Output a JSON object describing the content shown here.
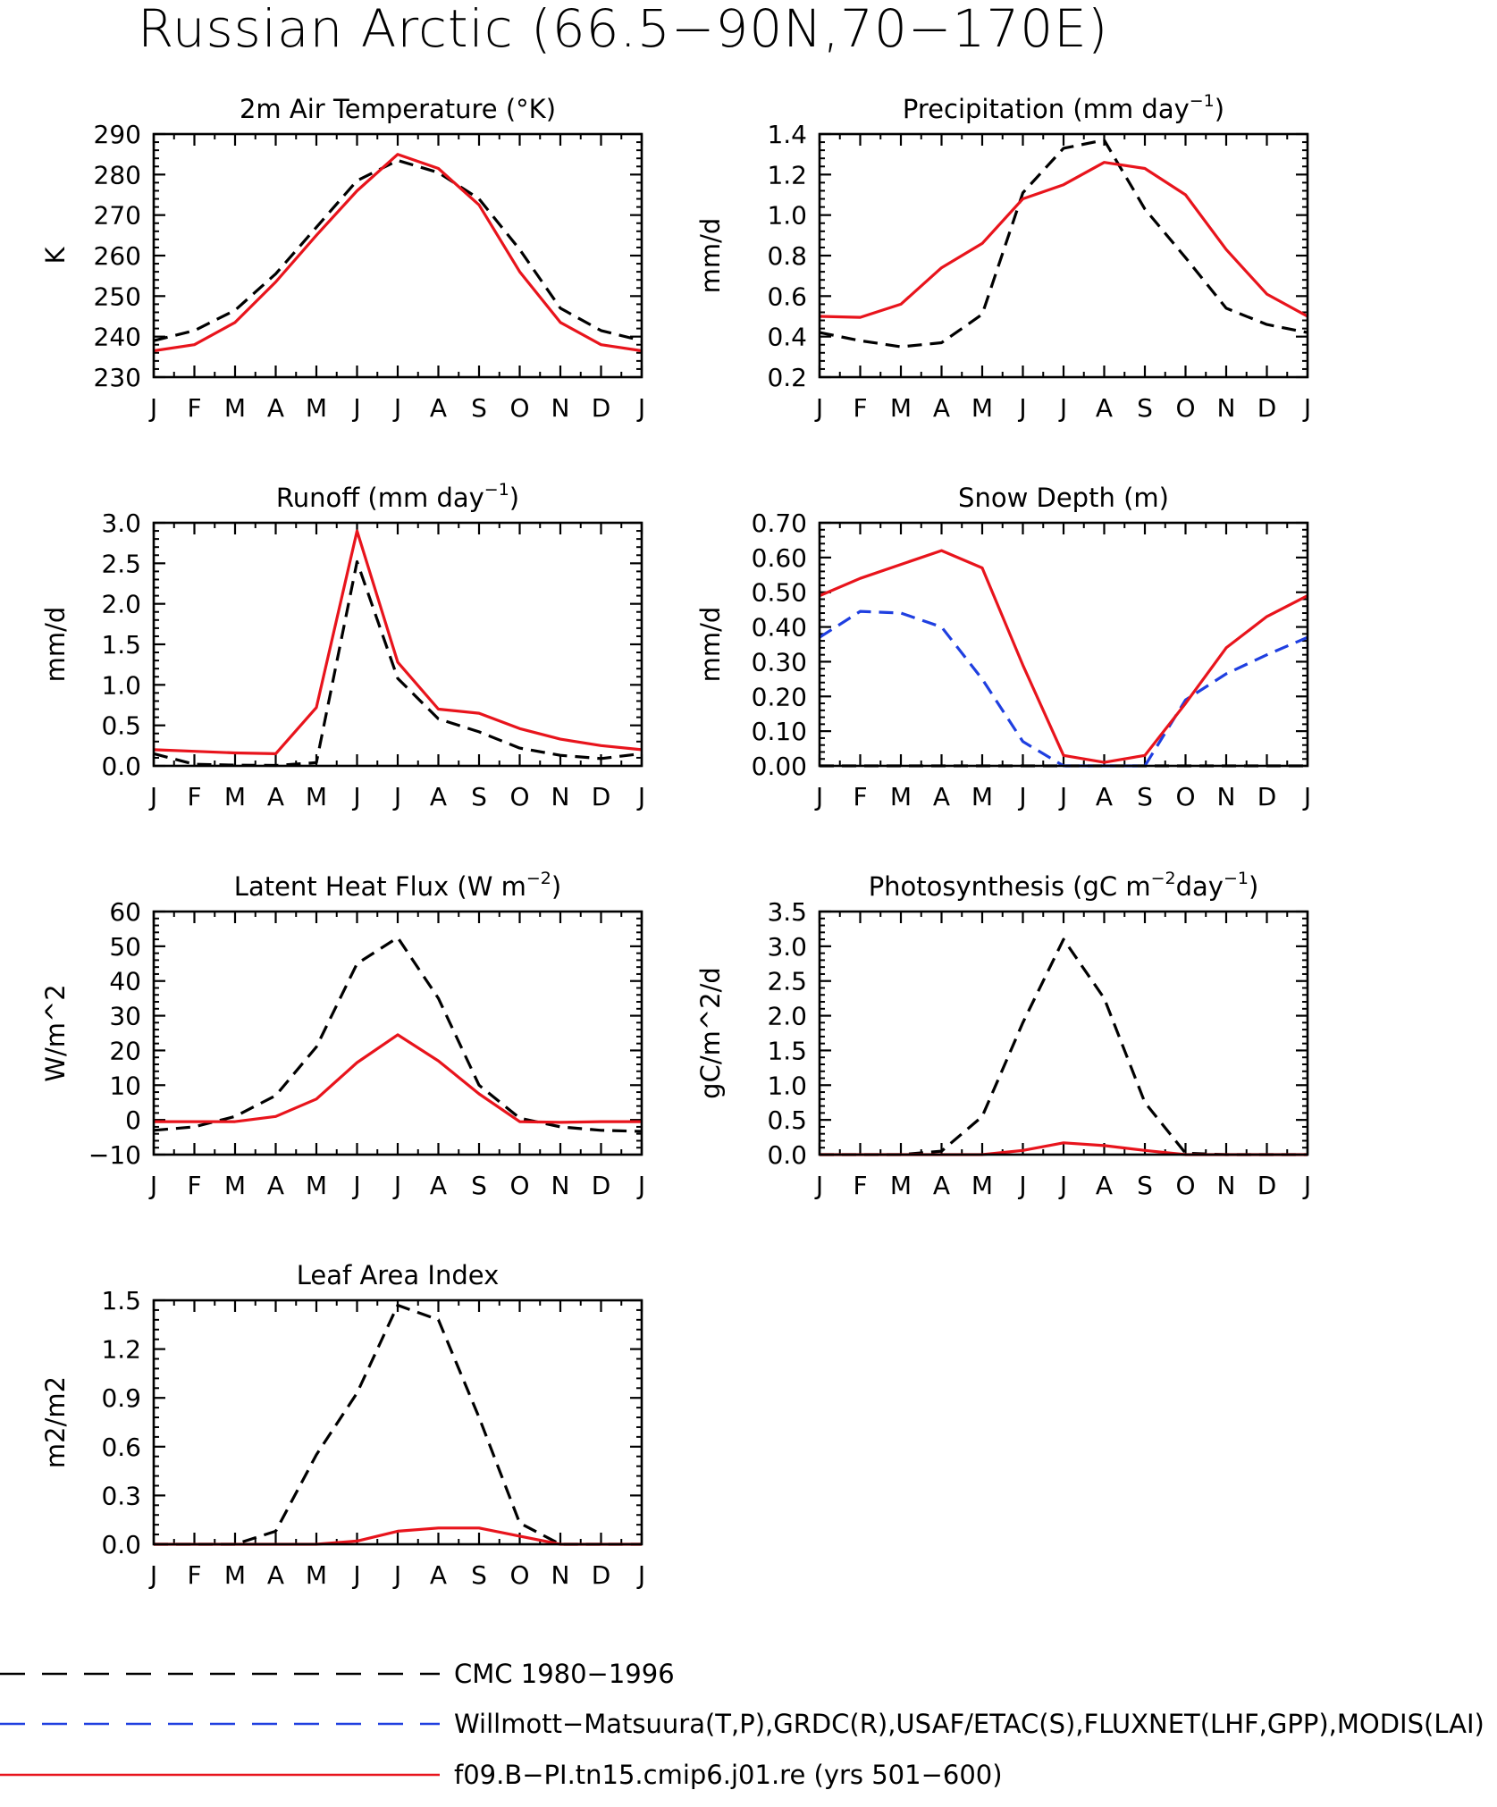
{
  "title": "Russian Arctic (66.5−90N,70−170E)",
  "months": [
    "J",
    "F",
    "M",
    "A",
    "M",
    "J",
    "J",
    "A",
    "S",
    "O",
    "N",
    "D",
    "J"
  ],
  "colors": {
    "cmc": "#000000",
    "obs": "#1f3fe0",
    "model": "#e8141c"
  },
  "chart_data": [
    {
      "type": "line",
      "id": "air-temperature",
      "title": "2m Air Temperature (°K)",
      "ylabel": "K",
      "ylim": [
        230,
        290
      ],
      "yticks": [
        230,
        240,
        250,
        260,
        270,
        280,
        290
      ],
      "ytick_labels": [
        "230",
        "240",
        "250",
        "260",
        "270",
        "280",
        "290"
      ],
      "series": [
        {
          "key": "cmc",
          "dash": true,
          "values": [
            239.0,
            241.5,
            246.5,
            255.5,
            267.0,
            278.5,
            283.5,
            280.5,
            274.0,
            261.5,
            247.0,
            241.5,
            239.0
          ]
        },
        {
          "key": "model",
          "dash": false,
          "values": [
            236.5,
            238.0,
            243.5,
            253.5,
            265.0,
            276.0,
            285.0,
            281.5,
            272.5,
            256.0,
            243.5,
            238.0,
            236.5
          ]
        }
      ]
    },
    {
      "type": "line",
      "id": "precipitation",
      "title": "Precipitation (mm day",
      "title_sup": "−1",
      "title_end": ")",
      "ylabel": "mm/d",
      "ylim": [
        0.2,
        1.4
      ],
      "yticks": [
        0.2,
        0.4,
        0.6,
        0.8,
        1.0,
        1.2,
        1.4
      ],
      "ytick_labels": [
        "0.2",
        "0.4",
        "0.6",
        "0.8",
        "1.0",
        "1.2",
        "1.4"
      ],
      "series": [
        {
          "key": "cmc",
          "dash": true,
          "values": [
            0.42,
            0.38,
            0.35,
            0.37,
            0.51,
            1.11,
            1.33,
            1.37,
            1.03,
            0.79,
            0.54,
            0.46,
            0.42
          ]
        },
        {
          "key": "model",
          "dash": false,
          "values": [
            0.5,
            0.495,
            0.56,
            0.74,
            0.86,
            1.08,
            1.15,
            1.26,
            1.23,
            1.1,
            0.83,
            0.61,
            0.5
          ]
        }
      ]
    },
    {
      "type": "line",
      "id": "runoff",
      "title": "Runoff (mm day",
      "title_sup": "−1",
      "title_end": ")",
      "ylabel": "mm/d",
      "ylim": [
        0.0,
        3.0
      ],
      "yticks": [
        0.0,
        0.5,
        1.0,
        1.5,
        2.0,
        2.5,
        3.0
      ],
      "ytick_labels": [
        "0.0",
        "0.5",
        "1.0",
        "1.5",
        "2.0",
        "2.5",
        "3.0"
      ],
      "series": [
        {
          "key": "cmc",
          "dash": true,
          "values": [
            0.15,
            0.02,
            0.01,
            0.005,
            0.04,
            2.52,
            1.08,
            0.58,
            0.42,
            0.22,
            0.13,
            0.09,
            0.15
          ]
        },
        {
          "key": "model",
          "dash": false,
          "values": [
            0.2,
            0.18,
            0.16,
            0.15,
            0.72,
            2.9,
            1.28,
            0.7,
            0.65,
            0.46,
            0.33,
            0.25,
            0.2
          ]
        }
      ]
    },
    {
      "type": "line",
      "id": "snow-depth",
      "title": "Snow Depth (m)",
      "ylabel": "mm/d",
      "ylim": [
        0.0,
        0.7
      ],
      "yticks": [
        0.0,
        0.1,
        0.2,
        0.3,
        0.4,
        0.5,
        0.6,
        0.7
      ],
      "ytick_labels": [
        "0.00",
        "0.10",
        "0.20",
        "0.30",
        "0.40",
        "0.50",
        "0.60",
        "0.70"
      ],
      "series": [
        {
          "key": "cmc",
          "dash": true,
          "values": [
            0,
            0,
            0,
            0,
            0,
            0,
            0,
            0,
            0,
            0,
            0,
            0,
            0
          ]
        },
        {
          "key": "obs",
          "dash": true,
          "values": [
            0.37,
            0.445,
            0.44,
            0.4,
            0.25,
            0.07,
            0.0,
            0.0,
            0.0,
            0.19,
            0.265,
            0.32,
            0.37
          ]
        },
        {
          "key": "model",
          "dash": false,
          "values": [
            0.49,
            0.54,
            0.58,
            0.62,
            0.57,
            0.29,
            0.03,
            0.01,
            0.03,
            0.18,
            0.34,
            0.43,
            0.49
          ]
        }
      ]
    },
    {
      "type": "line",
      "id": "latent-heat-flux",
      "title": "Latent Heat Flux (W m",
      "title_sup": "−2",
      "title_end": ")",
      "ylabel": "W/m^2",
      "ylim": [
        -10,
        60
      ],
      "yticks": [
        -10,
        0,
        10,
        20,
        30,
        40,
        50,
        60
      ],
      "ytick_labels": [
        "−10",
        "0",
        "10",
        "20",
        "30",
        "40",
        "50",
        "60"
      ],
      "series": [
        {
          "key": "cmc",
          "dash": true,
          "values": [
            -3.0,
            -2.0,
            1.0,
            7.0,
            21.0,
            45.0,
            52.5,
            35.0,
            10.0,
            0.5,
            -2.0,
            -3.0,
            -3.3
          ]
        },
        {
          "key": "model",
          "dash": false,
          "values": [
            -0.5,
            -0.5,
            -0.5,
            1.0,
            6.0,
            16.5,
            24.5,
            17.0,
            7.5,
            -0.5,
            -0.7,
            -0.5,
            -0.5
          ]
        }
      ]
    },
    {
      "type": "line",
      "id": "photosynthesis",
      "title": "Photosynthesis (gC m",
      "title_sup": "−2",
      "title_mid": "day",
      "title_sup2": "−1",
      "title_end": ")",
      "ylabel": "gC/m^2/d",
      "ylim": [
        0.0,
        3.5
      ],
      "yticks": [
        0.0,
        0.5,
        1.0,
        1.5,
        2.0,
        2.5,
        3.0,
        3.5
      ],
      "ytick_labels": [
        "0.0",
        "0.5",
        "1.0",
        "1.5",
        "2.0",
        "2.5",
        "3.0",
        "3.5"
      ],
      "series": [
        {
          "key": "cmc",
          "dash": true,
          "values": [
            0.0,
            0.0,
            0.0,
            0.05,
            0.55,
            1.9,
            3.1,
            2.25,
            0.75,
            0.02,
            0.0,
            0.0,
            0.0
          ]
        },
        {
          "key": "model",
          "dash": false,
          "values": [
            0.0,
            0.0,
            0.0,
            0.0,
            0.0,
            0.06,
            0.17,
            0.13,
            0.06,
            0.0,
            0.0,
            0.0,
            0.0
          ]
        }
      ]
    },
    {
      "type": "line",
      "id": "leaf-area-index",
      "title": "Leaf Area Index",
      "ylabel": "m2/m2",
      "ylim": [
        0.0,
        1.5
      ],
      "yticks": [
        0.0,
        0.3,
        0.6,
        0.9,
        1.2,
        1.5
      ],
      "ytick_labels": [
        "0.0",
        "0.3",
        "0.6",
        "0.9",
        "1.2",
        "1.5"
      ],
      "series": [
        {
          "key": "cmc",
          "dash": true,
          "values": [
            0.0,
            0.0,
            0.0,
            0.08,
            0.55,
            0.93,
            1.47,
            1.38,
            0.78,
            0.13,
            0.0,
            0.0,
            0.0
          ]
        },
        {
          "key": "model",
          "dash": false,
          "values": [
            0.0,
            0.0,
            0.0,
            0.0,
            0.0,
            0.02,
            0.08,
            0.1,
            0.1,
            0.05,
            0.0,
            0.0,
            0.0
          ]
        }
      ]
    }
  ],
  "legend": [
    {
      "key": "cmc",
      "dash": true,
      "label": "CMC 1980−1996"
    },
    {
      "key": "obs",
      "dash": true,
      "label": "Willmott−Matsuura(T,P),GRDC(R),USAF/ETAC(S),FLUXNET(LHF,GPP),MODIS(LAI)"
    },
    {
      "key": "model",
      "dash": false,
      "label": "f09.B−PI.tn15.cmip6.j01.re (yrs 501−600)"
    }
  ]
}
